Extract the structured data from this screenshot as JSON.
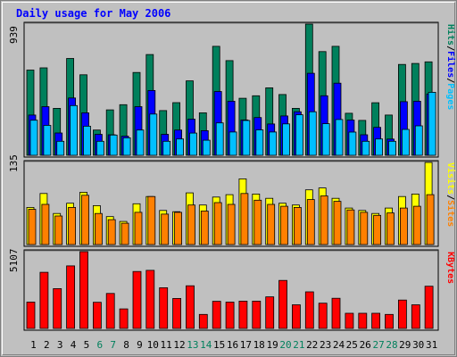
{
  "chart_data": {
    "type": "bar",
    "title": "Daily usage for May 2006",
    "colors": {
      "hits": "#00805c",
      "files": "#0000ff",
      "pages": "#00c0ff",
      "visits": "#ffff00",
      "sites": "#ff8000",
      "kbytes": "#ff0000",
      "plot_bg": "#c0c0c0",
      "title": "#0000ff",
      "weekend_day": "#00805c"
    },
    "categories": [
      "1",
      "2",
      "3",
      "4",
      "5",
      "6",
      "7",
      "8",
      "9",
      "10",
      "11",
      "12",
      "13",
      "14",
      "15",
      "16",
      "17",
      "18",
      "19",
      "20",
      "21",
      "22",
      "23",
      "24",
      "25",
      "26",
      "27",
      "28",
      "29",
      "30",
      "31"
    ],
    "weekend_days": [
      "6",
      "7",
      "13",
      "14",
      "20",
      "21",
      "27",
      "28"
    ],
    "panels": [
      {
        "max_label": "939",
        "ylim": [
          0,
          939
        ],
        "legend": [
          {
            "text": "Pages",
            "color": "#00c0ff"
          },
          {
            "text": "Files",
            "color": "#0000ff"
          },
          {
            "text": "Hits",
            "color": "#00805c"
          }
        ],
        "series": [
          {
            "name": "Hits",
            "values": [
              610,
              626,
              336,
              693,
              576,
              181,
              325,
              362,
              593,
              721,
              320,
              377,
              533,
              304,
              780,
              678,
              408,
              426,
              483,
              435,
              336,
              939,
              742,
              780,
              301,
              250,
              376,
              288,
              650,
              657,
              669
            ]
          },
          {
            "name": "Files",
            "values": [
              288,
              348,
              160,
              410,
              304,
              150,
              147,
              137,
              348,
              464,
              150,
              181,
              259,
              176,
              457,
              387,
              253,
              270,
              224,
              282,
              312,
              587,
              426,
              516,
              252,
              147,
              200,
              116,
              384,
              387,
              439
            ]
          },
          {
            "name": "Pages",
            "values": [
              251,
              214,
              100,
              356,
              208,
              100,
              145,
              125,
              181,
              295,
              100,
              117,
              159,
              108,
              232,
              167,
              249,
              182,
              167,
              225,
              290,
              312,
              226,
              256,
              166,
              100,
              117,
              100,
              185,
              211,
              451
            ]
          }
        ]
      },
      {
        "max_label": "135",
        "ylim": [
          0,
          135
        ],
        "legend": [
          {
            "text": "Sites",
            "color": "#ff8000"
          },
          {
            "text": "Visits",
            "color": "#ffff00"
          }
        ],
        "series": [
          {
            "name": "Visits",
            "values": [
              61,
              84,
              51,
              68,
              86,
              64,
              46,
              38,
              67,
              79,
              56,
              54,
              85,
              65,
              78,
              82,
              108,
              83,
              76,
              68,
              65,
              90,
              93,
              76,
              60,
              56,
              51,
              60,
              79,
              83,
              135
            ]
          },
          {
            "name": "Sites",
            "values": [
              58,
              66,
              47,
              61,
              81,
              51,
              41,
              35,
              53,
              79,
              50,
              53,
              65,
              55,
              69,
              66,
              84,
              73,
              66,
              63,
              61,
              74,
              80,
              71,
              57,
              53,
              48,
              52,
              60,
              63,
              82
            ]
          }
        ]
      },
      {
        "max_label": "5107",
        "ylim": [
          0,
          5107
        ],
        "legend": [
          {
            "text": "KBytes",
            "color": "#ff0000"
          }
        ],
        "series": [
          {
            "name": "KBytes",
            "values": [
              1754,
              3737,
              2646,
              4163,
              5107,
              1739,
              2330,
              1302,
              3787,
              3867,
              2710,
              1994,
              2837,
              933,
              1807,
              1754,
              1815,
              1815,
              2102,
              3196,
              1572,
              2434,
              1679,
              2007,
              1011,
              1011,
              1011,
              933,
              1890,
              1572,
              2807
            ]
          }
        ]
      }
    ]
  }
}
